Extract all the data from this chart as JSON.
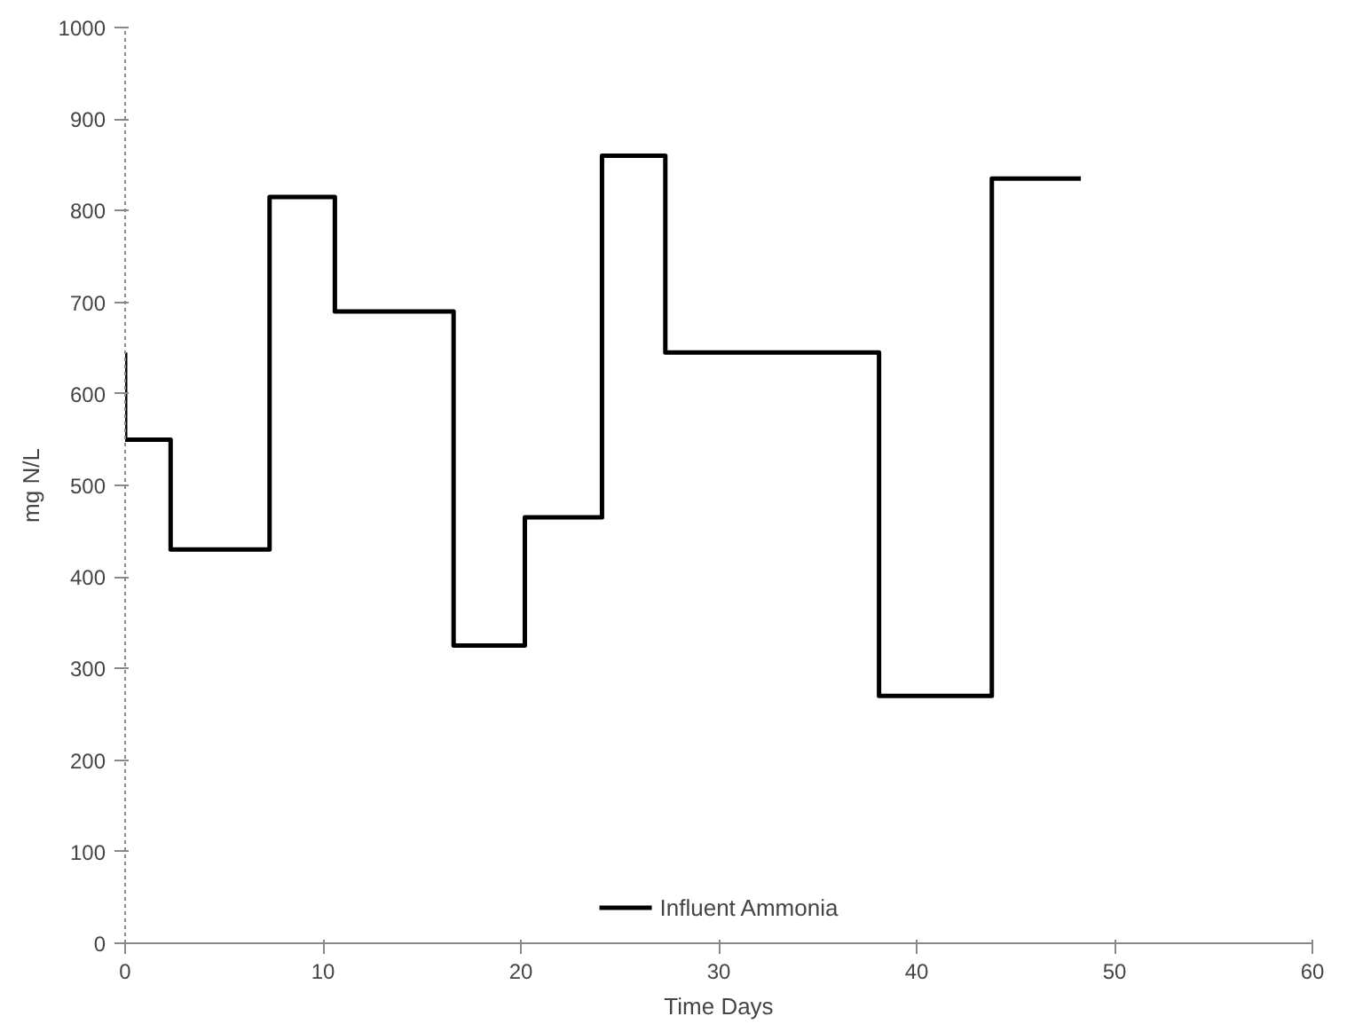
{
  "chart_data": {
    "type": "step",
    "xlabel": "Time Days",
    "ylabel": "mg N/L",
    "xlim": [
      0,
      60
    ],
    "ylim": [
      0,
      1000
    ],
    "xticks": [
      0,
      10,
      20,
      30,
      40,
      50,
      60
    ],
    "yticks": [
      0,
      100,
      200,
      300,
      400,
      500,
      600,
      700,
      800,
      900,
      1000
    ],
    "grid": false,
    "legend": "bottom",
    "marker": "none",
    "line_style": "solid",
    "series": [
      {
        "name": "Influent Ammonia",
        "color": "#000000",
        "x": [
          0,
          0,
          2.3,
          7.3,
          10.6,
          16.6,
          20.2,
          24.1,
          27.3,
          38.1,
          43.8,
          48.3
        ],
        "values": [
          645,
          550,
          430,
          815,
          690,
          325,
          465,
          860,
          645,
          270,
          835,
          835
        ]
      }
    ]
  }
}
